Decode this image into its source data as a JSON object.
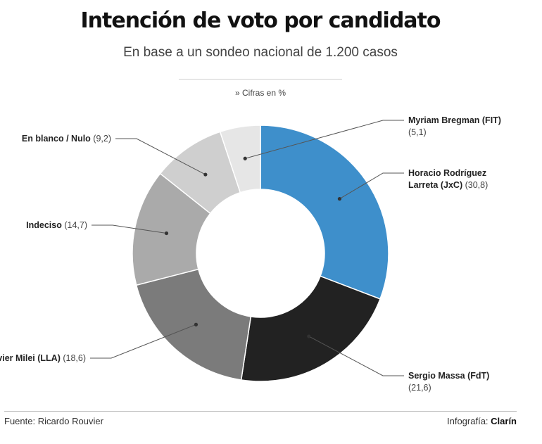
{
  "header": {
    "title": "Intención de voto por candidato",
    "subtitle": "En base a un sondeo nacional de 1.200 casos",
    "units_note": "» Cifras en %"
  },
  "footer": {
    "source": "Fuente: Ricardo Rouvier",
    "credit_prefix": "Infografía: ",
    "credit_brand": "Clarín"
  },
  "chart_data": {
    "type": "pie",
    "donut": true,
    "slices": [
      {
        "label": "Horacio Rodríguez Larreta (JxC)",
        "value": 30.8,
        "color": "#3e8fcb"
      },
      {
        "label": "Sergio Massa (FdT)",
        "value": 21.6,
        "color": "#222222"
      },
      {
        "label": "Javier Milei (LLA)",
        "value": 18.6,
        "color": "#7b7b7b"
      },
      {
        "label": "Indeciso",
        "value": 14.7,
        "color": "#aaaaaa"
      },
      {
        "label": "En blanco / Nulo",
        "value": 9.2,
        "color": "#cfcfcf"
      },
      {
        "label": "Myriam Bregman (FIT)",
        "value": 5.1,
        "color": "#e6e6e6"
      }
    ]
  }
}
